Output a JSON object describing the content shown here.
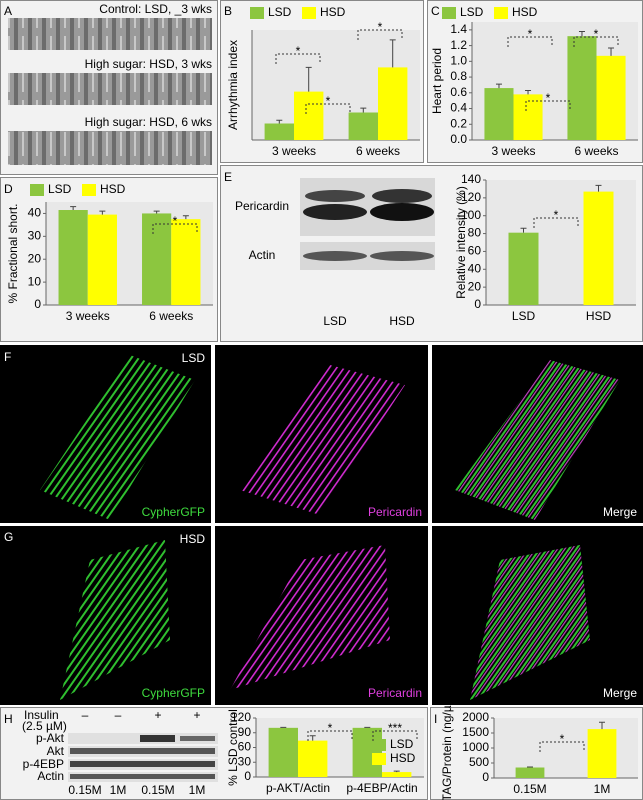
{
  "panels": {
    "letters": [
      "A",
      "B",
      "C",
      "D",
      "E",
      "F",
      "G",
      "H",
      "I"
    ]
  },
  "panel_a": {
    "labels": [
      "Control: LSD, _3 wks",
      "High sugar: HSD, 3 wks",
      "High sugar: HSD, 6 wks"
    ]
  },
  "panel_e": {
    "rows": [
      "Pericardin",
      "Actin"
    ],
    "lanes": [
      "LSD",
      "HSD"
    ]
  },
  "panel_f": {
    "labels": [
      "LSD",
      "CypherGFP",
      "Pericardin",
      "Merge"
    ]
  },
  "panel_g": {
    "labels": [
      "HSD",
      "CypherGFP",
      "Pericardin",
      "Merge"
    ]
  },
  "panel_h": {
    "insulin": "Insulin",
    "dose": "(2.5 µM)",
    "signs": [
      "–",
      "–",
      "+",
      "+"
    ],
    "rows": [
      "p-Akt",
      "Akt",
      "p-4EBP",
      "Actin"
    ],
    "lanes": [
      "0.15M",
      "1M",
      "0.15M",
      "1M"
    ]
  },
  "chart_data": [
    {
      "type": "bar",
      "ylabel": "Arrhythmia index",
      "categories": [
        "3 weeks",
        "6 weeks"
      ],
      "ylim": [
        0,
        1
      ],
      "legend": "upper left",
      "series": [
        {
          "name": "LSD",
          "color": "#8cc63f",
          "values": [
            0.15,
            0.25
          ],
          "errors": [
            0.03,
            0.04
          ]
        },
        {
          "name": "HSD",
          "color": "#ffff00",
          "values": [
            0.44,
            0.66
          ],
          "errors": [
            0.22,
            0.25
          ]
        }
      ],
      "annotations": [
        "*",
        "*",
        "*"
      ]
    },
    {
      "type": "bar",
      "ylabel": "Heart period",
      "categories": [
        "3 weeks",
        "6 weeks"
      ],
      "ylim": [
        0,
        1.5
      ],
      "legend": "upper left",
      "yticks": [
        {
          "value": 0,
          "label": "0.0"
        },
        {
          "value": 0.2,
          "label": "0.2"
        },
        {
          "value": 0.4,
          "label": "0.4"
        },
        {
          "value": 0.6,
          "label": "0.6"
        },
        {
          "value": 0.8,
          "label": "0.8"
        },
        {
          "value": 1,
          "label": "1.0"
        },
        {
          "value": 1.2,
          "label": "1.2"
        },
        {
          "value": 1.4,
          "label": "1.4"
        }
      ],
      "series": [
        {
          "name": "LSD",
          "color": "#8cc63f",
          "values": [
            0.66,
            1.32
          ],
          "errors": [
            0.05,
            0.06
          ]
        },
        {
          "name": "HSD",
          "color": "#ffff00",
          "values": [
            0.58,
            1.07
          ],
          "errors": [
            0.05,
            0.1
          ]
        }
      ],
      "annotations": [
        "*",
        "*",
        "*"
      ]
    },
    {
      "type": "bar",
      "ylabel": "% Fractional short.",
      "categories": [
        "3 weeks",
        "6 weeks"
      ],
      "ylim": [
        0,
        45
      ],
      "yticks": [
        0,
        10,
        20,
        30,
        40
      ],
      "legend": "upper left",
      "series": [
        {
          "name": "LSD",
          "color": "#8cc63f",
          "values": [
            41.5,
            40
          ],
          "errors": [
            1.5,
            1
          ]
        },
        {
          "name": "HSD",
          "color": "#ffff00",
          "values": [
            39.5,
            37.5
          ],
          "errors": [
            1.5,
            1.5
          ]
        }
      ],
      "annotations": [
        "*"
      ]
    },
    {
      "type": "bar",
      "ylabel": "Relative intensity (%)",
      "categories": [
        "LSD",
        "HSD"
      ],
      "ylim": [
        0,
        140
      ],
      "yticks": [
        0,
        20,
        40,
        60,
        80,
        100,
        120,
        140
      ],
      "series": [
        {
          "colors": [
            "#8cc63f",
            "#ffff00"
          ],
          "values": [
            81,
            127
          ],
          "errors": [
            5,
            7
          ]
        }
      ],
      "annotations": [
        "*"
      ]
    },
    {
      "type": "bar",
      "ylabel": "% LSD control",
      "categories": [
        "p-AKT/Actin",
        "p-4EBP/Actin"
      ],
      "ylim": [
        0,
        120
      ],
      "yticks": [
        0,
        30,
        60,
        90,
        120
      ],
      "legend": "right",
      "series": [
        {
          "name": "LSD",
          "color": "#8cc63f",
          "values": [
            100,
            100
          ],
          "errors": [
            1,
            1
          ]
        },
        {
          "name": "HSD",
          "color": "#ffff00",
          "values": [
            74,
            10
          ],
          "errors": [
            10,
            2
          ]
        }
      ],
      "annotations": [
        "*",
        "***"
      ]
    },
    {
      "type": "bar",
      "ylabel": "TAG/Protein (ng/µg)",
      "categories": [
        "0.15M",
        "1M"
      ],
      "ylim": [
        0,
        2000
      ],
      "yticks": [
        0,
        500,
        1000,
        1500,
        2000
      ],
      "series": [
        {
          "colors": [
            "#8cc63f",
            "#ffff00"
          ],
          "values": [
            350,
            1630
          ],
          "errors": [
            15,
            230
          ]
        }
      ],
      "annotations": [
        "*"
      ]
    }
  ]
}
